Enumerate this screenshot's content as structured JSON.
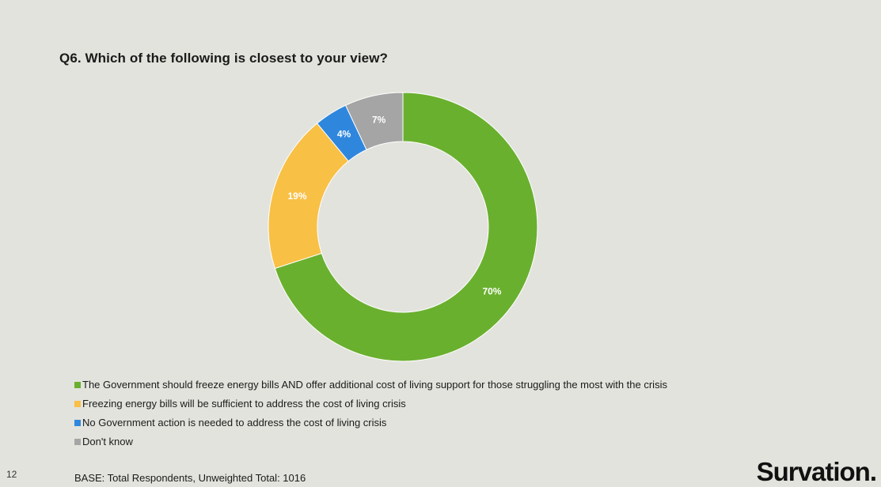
{
  "title": "Q6. Which of the following is closest to your view?",
  "chart_data": {
    "type": "pie",
    "subtype": "donut",
    "categories": [
      "The Government should freeze energy bills AND offer additional cost of living support for those struggling the most with the crisis",
      "Freezing energy bills will be sufficient to address the cost of living crisis",
      "No Government action is needed to address the cost of living crisis",
      "Don't know"
    ],
    "values": [
      70,
      19,
      4,
      7
    ],
    "labels": [
      "70%",
      "19%",
      "4%",
      "7%"
    ],
    "colors": [
      "#6ab02f",
      "#f8c045",
      "#2f87dd",
      "#a5a5a5"
    ],
    "legend_position": "bottom-left"
  },
  "footer": {
    "page_number": "12",
    "base": "BASE: Total Respondents, Unweighted Total: 1016",
    "logo": "Survation."
  }
}
